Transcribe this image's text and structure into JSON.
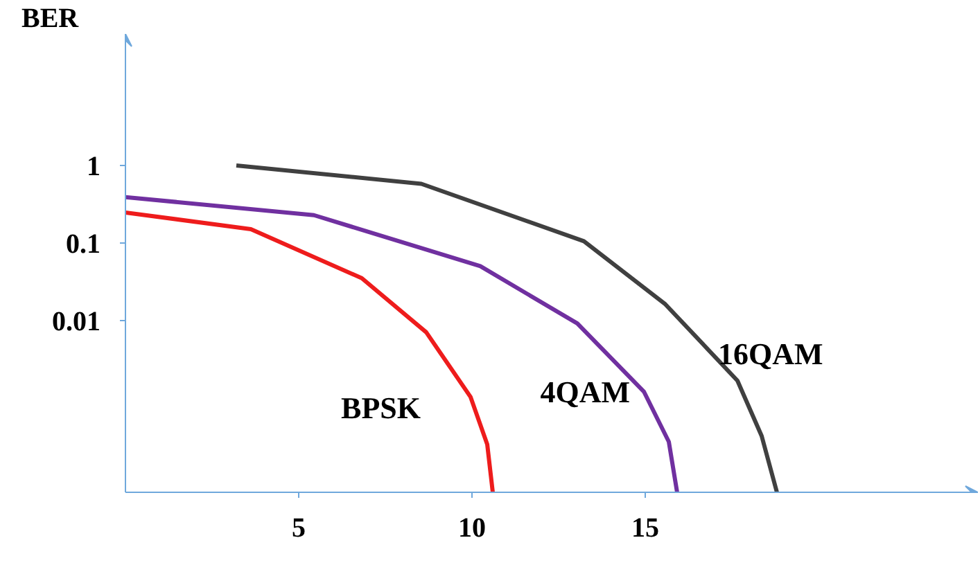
{
  "chart_data": {
    "type": "line",
    "ylabel": "BER",
    "log": "y",
    "grid": false,
    "legend": false,
    "marker": "none",
    "line_style": "solid",
    "xlim": [
      0,
      24.6
    ],
    "ylim": [
      6e-05,
      50
    ],
    "xticks": [
      5,
      10,
      15
    ],
    "yticks": [
      1,
      0.1,
      0.01
    ],
    "series": [
      {
        "name": "BPSK",
        "color": "#ee1c1c",
        "x": [
          0,
          3.62,
          6.82,
          8.68,
          9.96,
          10.44,
          10.6
        ],
        "values": [
          0.247,
          0.15,
          0.035,
          0.007,
          0.00102,
          0.00025,
          6e-05
        ]
      },
      {
        "name": "4QAM",
        "color": "#7030a0",
        "x": [
          0,
          5.44,
          10.24,
          13.04,
          14.96,
          15.68,
          15.92
        ],
        "values": [
          0.39,
          0.228,
          0.05,
          0.0091,
          0.0012,
          0.00027,
          6e-05
        ]
      },
      {
        "name": "16QAM",
        "color": "#404040",
        "x": [
          3.2,
          8.54,
          13.23,
          15.58,
          17.66,
          18.36,
          18.8
        ],
        "values": [
          1.0,
          0.579,
          0.105,
          0.0161,
          0.00166,
          0.00032,
          6e-05
        ]
      }
    ]
  }
}
